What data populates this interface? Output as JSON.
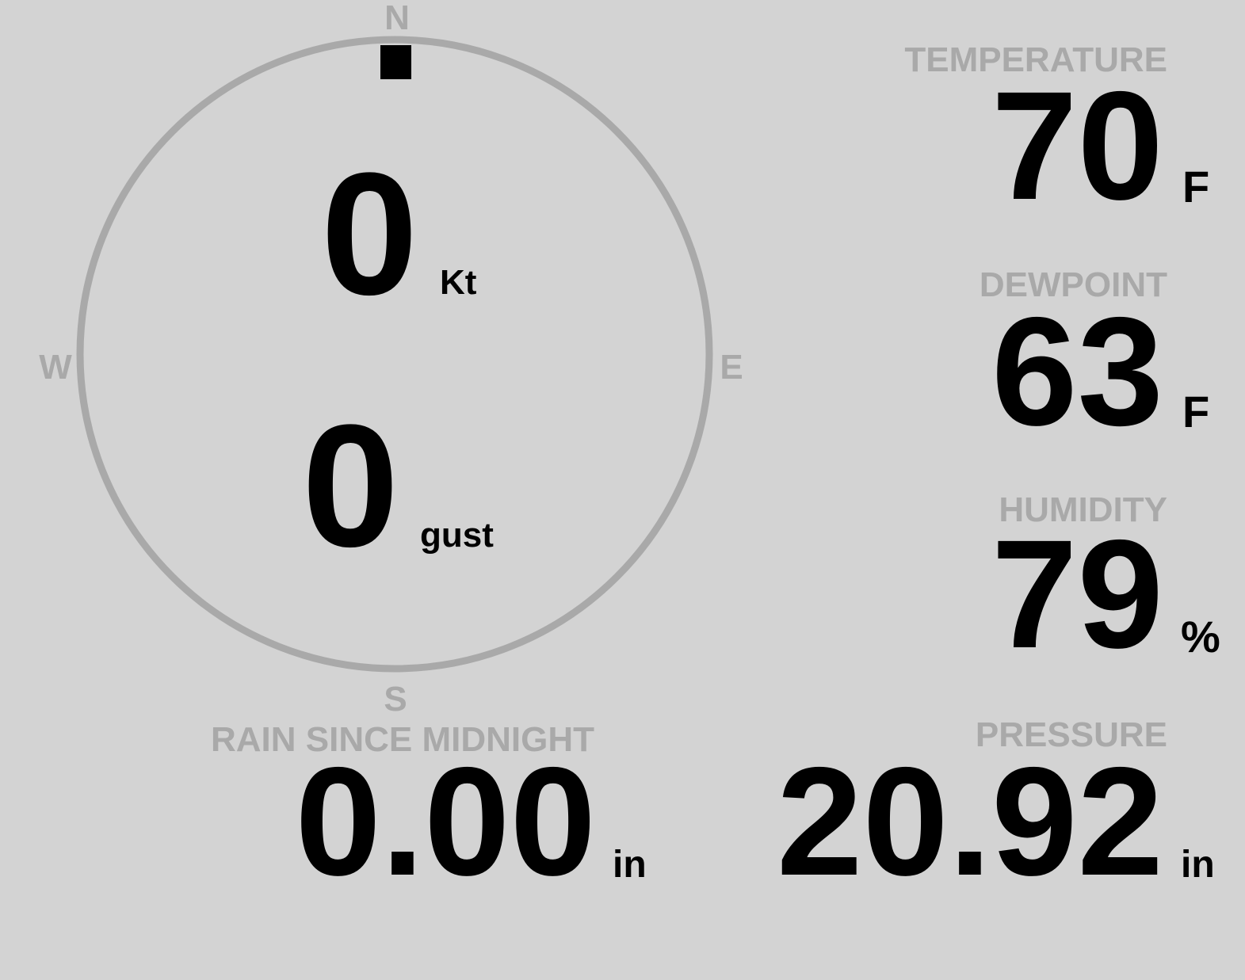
{
  "colors": {
    "background": "#d3d3d3",
    "label": "#a9a9a9",
    "value": "#000000"
  },
  "wind": {
    "compass": {
      "n": "N",
      "e": "E",
      "s": "S",
      "w": "W"
    },
    "direction_deg": 0,
    "speed": "0",
    "speed_unit": "Kt",
    "gust": "0",
    "gust_unit": "gust"
  },
  "temperature": {
    "label": "TEMPERATURE",
    "value": "70",
    "unit": "F"
  },
  "dewpoint": {
    "label": "DEWPOINT",
    "value": "63",
    "unit": "F"
  },
  "humidity": {
    "label": "HUMIDITY",
    "value": "79",
    "unit": "%"
  },
  "pressure": {
    "label": "PRESSURE",
    "value": "20.92",
    "unit": "in"
  },
  "rain": {
    "label": "RAIN SINCE MIDNIGHT",
    "value": "0.00",
    "unit": "in"
  }
}
